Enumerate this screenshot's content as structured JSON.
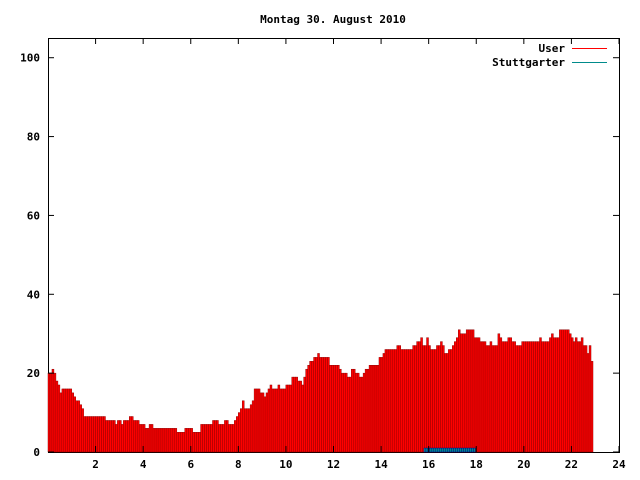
{
  "chart_data": {
    "type": "bar",
    "title": "Montag 30. August 2010",
    "xlabel": "",
    "ylabel": "",
    "xlim": [
      0,
      24
    ],
    "ylim": [
      0,
      105
    ],
    "x_ticks": [
      2,
      4,
      6,
      8,
      10,
      12,
      14,
      16,
      18,
      20,
      22,
      24
    ],
    "y_ticks": [
      0,
      20,
      40,
      60,
      80,
      100
    ],
    "grid": false,
    "legend_position": "top-right",
    "series": [
      {
        "name": "User",
        "color": "#ff0000",
        "outline_color": "#8b0000",
        "x_start": 0.0,
        "x_step": 0.0833,
        "values": [
          20,
          20,
          21,
          20,
          18,
          17,
          15,
          16,
          16,
          16,
          16,
          16,
          15,
          14,
          13,
          13,
          12,
          11,
          9,
          9,
          9,
          9,
          9,
          9,
          9,
          9,
          9,
          9,
          9,
          8,
          8,
          8,
          8,
          8,
          7,
          8,
          8,
          7,
          8,
          8,
          8,
          9,
          9,
          8,
          8,
          8,
          7,
          7,
          7,
          6,
          6,
          7,
          7,
          6,
          6,
          6,
          6,
          6,
          6,
          6,
          6,
          6,
          6,
          6,
          6,
          5,
          5,
          5,
          5,
          6,
          6,
          6,
          6,
          5,
          5,
          5,
          5,
          7,
          7,
          7,
          7,
          7,
          7,
          8,
          8,
          8,
          7,
          7,
          7,
          8,
          8,
          7,
          7,
          7,
          8,
          9,
          10,
          11,
          13,
          11,
          11,
          11,
          12,
          13,
          16,
          16,
          16,
          15,
          15,
          14,
          15,
          16,
          17,
          16,
          16,
          16,
          17,
          16,
          16,
          16,
          17,
          17,
          17,
          19,
          19,
          19,
          18,
          18,
          17,
          19,
          21,
          22,
          23,
          23,
          24,
          24,
          25,
          24,
          24,
          24,
          24,
          24,
          22,
          22,
          22,
          22,
          22,
          21,
          20,
          20,
          20,
          19,
          19,
          21,
          21,
          20,
          20,
          19,
          19,
          20,
          21,
          21,
          22,
          22,
          22,
          22,
          22,
          24,
          24,
          25,
          26,
          26,
          26,
          26,
          26,
          26,
          27,
          27,
          26,
          26,
          26,
          26,
          26,
          26,
          27,
          27,
          28,
          28,
          29,
          27,
          27,
          29,
          27,
          26,
          26,
          26,
          27,
          27,
          28,
          27,
          25,
          25,
          26,
          26,
          27,
          28,
          29,
          31,
          30,
          30,
          30,
          31,
          31,
          31,
          31,
          29,
          29,
          29,
          28,
          28,
          28,
          27,
          27,
          28,
          27,
          27,
          27,
          30,
          29,
          28,
          28,
          28,
          29,
          29,
          28,
          28,
          27,
          27,
          27,
          28,
          28,
          28,
          28,
          28,
          28,
          28,
          28,
          28,
          29,
          28,
          28,
          28,
          28,
          29,
          30,
          29,
          29,
          29,
          31,
          31,
          31,
          31,
          31,
          30,
          29,
          28,
          29,
          28,
          28,
          29,
          27,
          27,
          25,
          27,
          23
        ]
      },
      {
        "name": "Stuttgarter",
        "color": "#008b8b",
        "outline_color": "#00008b",
        "x_start": 15.8,
        "x_step": 0.0833,
        "values": [
          1,
          1,
          1,
          1,
          1,
          1,
          1,
          1,
          1,
          1,
          1,
          1,
          1,
          1,
          1,
          1,
          1,
          1,
          1,
          1,
          1,
          1,
          1,
          1,
          1,
          1
        ]
      }
    ]
  }
}
